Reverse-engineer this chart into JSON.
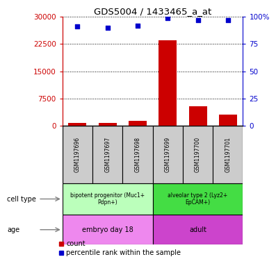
{
  "title": "GDS5004 / 1433465_a_at",
  "samples": [
    "GSM1197696",
    "GSM1197697",
    "GSM1197698",
    "GSM1197699",
    "GSM1197700",
    "GSM1197701"
  ],
  "counts": [
    900,
    800,
    1400,
    23500,
    5500,
    3100
  ],
  "percentile_ranks": [
    91,
    90,
    92,
    99,
    97,
    97
  ],
  "left_ylim": [
    0,
    30000
  ],
  "right_ylim": [
    0,
    100
  ],
  "left_yticks": [
    0,
    7500,
    15000,
    22500,
    30000
  ],
  "right_yticks": [
    0,
    25,
    50,
    75,
    100
  ],
  "right_yticklabels": [
    "0",
    "25",
    "50",
    "75",
    "100%"
  ],
  "left_yticklabels": [
    "0",
    "7500",
    "15000",
    "22500",
    "30000"
  ],
  "bar_color": "#cc0000",
  "dot_color": "#0000cc",
  "cell_types": [
    {
      "label": "bipotent progenitor (Muc1+\nPdpn+)",
      "samples": [
        0,
        1,
        2
      ],
      "color": "#bbffbb"
    },
    {
      "label": "alveolar type 2 (Lyz2+\nEpCAM+)",
      "samples": [
        3,
        4,
        5
      ],
      "color": "#44dd44"
    }
  ],
  "ages": [
    {
      "label": "embryo day 18",
      "samples": [
        0,
        1,
        2
      ],
      "color": "#ee88ee"
    },
    {
      "label": "adult",
      "samples": [
        3,
        4,
        5
      ],
      "color": "#cc44cc"
    }
  ],
  "cell_type_label": "cell type",
  "age_label": "age",
  "legend_count_label": "count",
  "legend_pct_label": "percentile rank within the sample",
  "sample_box_color": "#cccccc",
  "left_axis_color": "#cc0000",
  "right_axis_color": "#0000cc",
  "dot_size": 25
}
